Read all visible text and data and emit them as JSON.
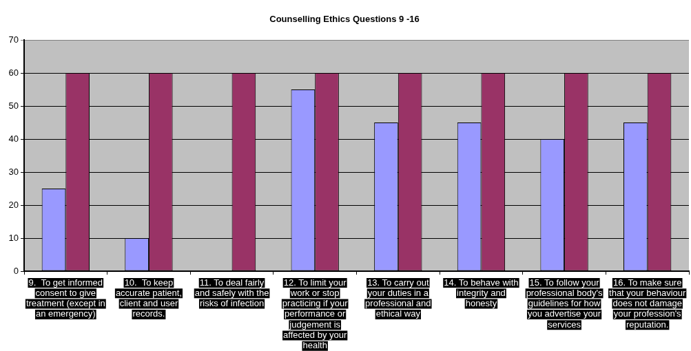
{
  "chart_data": {
    "type": "bar",
    "title": "Counselling Ethics Questions 9 -16",
    "categories": [
      "9.  To get informed consent to give treatment (except in an emergency)",
      "10.  To keep accurate patient, client and user records.",
      "11. To deal fairly and safely with the risks of infection",
      "12. To limit your work or stop practicing if your performance or judgement is affected by your health",
      "13. To carry out your duties in a professional and ethical way",
      "14. To behave with integrity and honesty",
      "15. To follow your professional body's guidelines for how you advertise your services",
      "16. To make sure that your behaviour does not damage your profession's reputation."
    ],
    "series": [
      {
        "color": "#9999ff",
        "values": [
          25,
          10,
          0,
          55,
          45,
          45,
          40,
          45
        ]
      },
      {
        "color": "#993366",
        "values": [
          60,
          60,
          60,
          60,
          60,
          60,
          60,
          60
        ]
      }
    ],
    "ylim": [
      0,
      70
    ],
    "yticks": [
      0,
      10,
      20,
      30,
      40,
      50,
      60,
      70
    ],
    "grid": "y"
  }
}
